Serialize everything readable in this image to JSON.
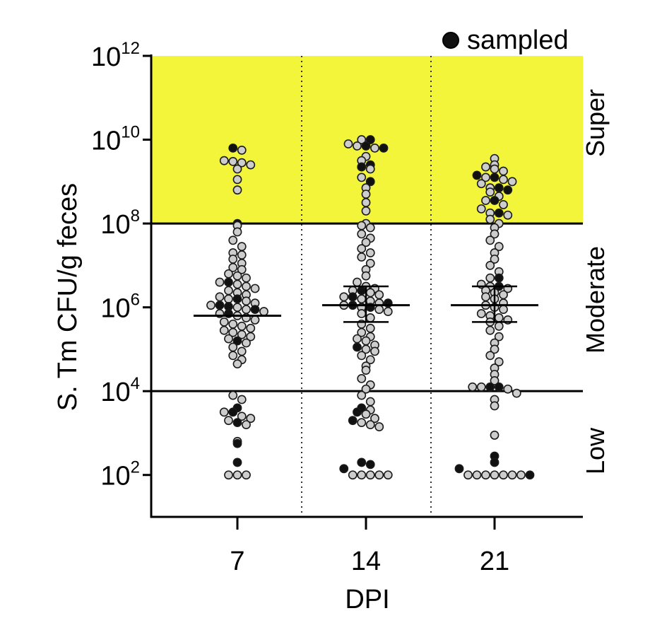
{
  "chart_data": {
    "type": "scatter",
    "ylabel": "S. Tm CFU/g feces",
    "xlabel": "DPI",
    "y_scale": "log10",
    "ylim_log10": [
      1,
      12
    ],
    "y_ticks": [
      {
        "base": "10",
        "exp": "2",
        "log10": 2
      },
      {
        "base": "10",
        "exp": "4",
        "log10": 4
      },
      {
        "base": "10",
        "exp": "6",
        "log10": 6
      },
      {
        "base": "10",
        "exp": "8",
        "log10": 8
      },
      {
        "base": "10",
        "exp": "10",
        "log10": 10
      },
      {
        "base": "10",
        "exp": "12",
        "log10": 12
      }
    ],
    "categories": [
      "7",
      "14",
      "21"
    ],
    "zones": [
      {
        "name": "Super",
        "from_log10": 8,
        "to_log10": 12,
        "color": "#f2f53a"
      },
      {
        "name": "Moderate",
        "from_log10": 4,
        "to_log10": 8,
        "color": "#ffffff"
      },
      {
        "name": "Low",
        "from_log10": 1,
        "to_log10": 4,
        "color": "#ffffff"
      }
    ],
    "legend": {
      "label": "sampled",
      "position": "top-right",
      "color": "#111111"
    },
    "colors": {
      "unsampled_fill": "#cdcdcd",
      "sampled_fill": "#111111",
      "zone_super": "#f2f53a"
    },
    "summary": [
      {
        "category": "7",
        "median_log10": 5.8,
        "err_low_log10": 5.8,
        "err_high_log10": 5.8
      },
      {
        "category": "14",
        "median_log10": 6.05,
        "err_low_log10": 5.65,
        "err_high_log10": 6.5
      },
      {
        "category": "21",
        "median_log10": 6.05,
        "err_low_log10": 5.65,
        "err_high_log10": 6.5
      }
    ],
    "series": [
      {
        "category": "7",
        "sampled_log10": [
          9.8,
          8.0,
          6.6,
          6.2,
          6.05,
          6.02,
          5.95,
          5.85,
          5.2,
          3.6,
          3.5,
          3.25,
          2.75,
          2.3
        ],
        "unsampled_log10": [
          9.75,
          9.5,
          9.48,
          9.45,
          9.4,
          9.3,
          9.05,
          8.8,
          7.95,
          7.8,
          7.6,
          7.45,
          7.3,
          7.25,
          7.15,
          7.05,
          6.95,
          6.9,
          6.8,
          6.75,
          6.7,
          6.6,
          6.55,
          6.5,
          6.45,
          6.4,
          6.35,
          6.3,
          6.25,
          6.2,
          6.15,
          6.1,
          6.05,
          6.0,
          5.95,
          5.9,
          5.85,
          5.8,
          5.75,
          5.7,
          5.65,
          5.6,
          5.55,
          5.5,
          5.45,
          5.4,
          5.35,
          5.3,
          5.25,
          5.15,
          5.05,
          4.95,
          4.85,
          4.75,
          4.65,
          3.9,
          3.8,
          3.5,
          3.4,
          3.35,
          3.3,
          3.2,
          2.8,
          2.0,
          2.0,
          2.0
        ]
      },
      {
        "category": "14",
        "sampled_log10": [
          10.0,
          9.85,
          9.8,
          9.4,
          9.35,
          9.0,
          6.4,
          6.25,
          6.1,
          6.05,
          6.0,
          5.05,
          3.6,
          3.5,
          3.3,
          2.3,
          2.25,
          2.15
        ],
        "unsampled_log10": [
          10.0,
          9.9,
          9.85,
          9.8,
          9.6,
          9.5,
          9.3,
          9.1,
          8.85,
          8.7,
          8.5,
          8.3,
          8.0,
          7.95,
          7.9,
          7.75,
          7.65,
          7.55,
          7.4,
          7.3,
          7.2,
          7.05,
          6.9,
          6.75,
          6.6,
          6.5,
          6.45,
          6.4,
          6.35,
          6.3,
          6.25,
          6.2,
          6.15,
          6.1,
          6.05,
          6.0,
          5.95,
          5.9,
          5.85,
          5.75,
          5.6,
          5.5,
          5.4,
          5.3,
          5.25,
          5.2,
          5.1,
          5.0,
          4.95,
          4.85,
          4.75,
          4.6,
          4.5,
          4.3,
          4.15,
          4.05,
          3.9,
          3.75,
          3.55,
          3.45,
          3.35,
          3.25,
          3.2,
          3.15,
          2.0,
          2.0,
          2.0,
          2.0,
          2.0
        ]
      },
      {
        "category": "21",
        "sampled_log10": [
          9.15,
          9.1,
          8.85,
          8.8,
          8.55,
          8.25,
          6.7,
          6.5,
          4.1,
          4.1,
          2.45,
          2.3,
          2.15,
          2.0
        ],
        "unsampled_log10": [
          9.55,
          9.4,
          9.35,
          9.3,
          9.25,
          9.1,
          9.05,
          9.0,
          8.95,
          8.85,
          8.75,
          8.65,
          8.55,
          8.45,
          8.35,
          8.25,
          8.2,
          8.1,
          8.0,
          7.9,
          7.75,
          7.6,
          7.45,
          7.3,
          7.15,
          7.0,
          6.85,
          6.7,
          6.55,
          6.5,
          6.45,
          6.4,
          6.35,
          6.3,
          6.25,
          6.2,
          6.1,
          6.05,
          6.0,
          5.95,
          5.85,
          5.8,
          5.75,
          5.7,
          5.65,
          5.55,
          5.45,
          5.3,
          5.15,
          5.0,
          4.85,
          4.7,
          4.55,
          4.4,
          4.25,
          4.1,
          4.1,
          4.05,
          3.95,
          3.8,
          3.65,
          2.95,
          2.0,
          2.0,
          2.0,
          2.0,
          2.0,
          2.0,
          2.0
        ]
      }
    ]
  }
}
